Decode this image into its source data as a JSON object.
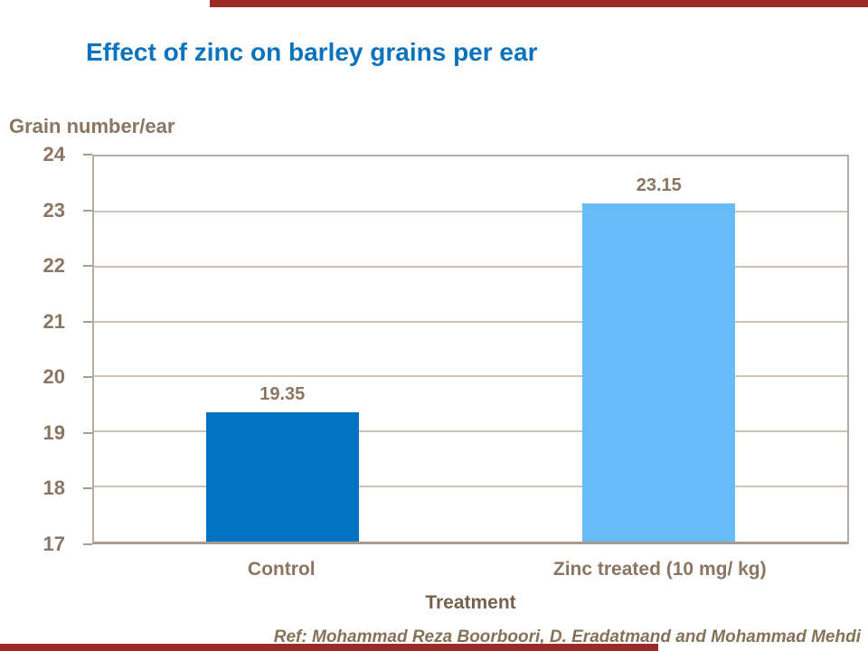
{
  "accent": {
    "bar_color": "#9B2926"
  },
  "title": {
    "text": "Effect of zinc on barley grains per ear",
    "color": "#0B72BE"
  },
  "chart_data": {
    "type": "bar",
    "title": "Effect of zinc on barley grains per ear",
    "categories": [
      "Control",
      "Zinc treated (10 mg/ kg)"
    ],
    "values": [
      19.35,
      23.15
    ],
    "value_labels": [
      "19.35",
      "23.15"
    ],
    "bar_colors": [
      "#0072C2",
      "#69BCFA"
    ],
    "xlabel": "Treatment",
    "ylabel": "Grain number/ear",
    "ylim": [
      17,
      24
    ],
    "yticks": [
      24,
      23,
      22,
      21,
      20,
      19,
      18,
      17
    ],
    "grid": true,
    "legend_position": "none",
    "text_color": "#8a7462",
    "gridline_color": "#cdc3b7",
    "axis_color": "#b5ab9f"
  },
  "footer": {
    "reference": "Ref: Mohammad Reza Boorboori, D. Eradatmand and Mohammad Mehdi"
  }
}
